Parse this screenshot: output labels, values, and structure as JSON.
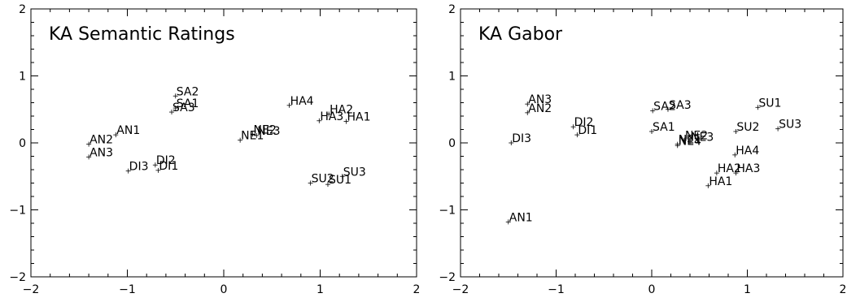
{
  "chart_data": [
    {
      "type": "scatter",
      "title": "KA Semantic Ratings",
      "xlim": [
        -2,
        2
      ],
      "ylim": [
        -2,
        2
      ],
      "xticks": [
        "−2",
        "−1",
        "0",
        "1",
        "2"
      ],
      "yticks": [
        "−2",
        "−1",
        "0",
        "1",
        "2"
      ],
      "grid": false,
      "points": [
        {
          "label": "SA2",
          "x": -0.5,
          "y": 0.7
        },
        {
          "label": "SA1",
          "x": -0.5,
          "y": 0.52
        },
        {
          "label": "SA3",
          "x": -0.54,
          "y": 0.46
        },
        {
          "label": "AN1",
          "x": -1.12,
          "y": 0.12
        },
        {
          "label": "AN2",
          "x": -1.4,
          "y": -0.02
        },
        {
          "label": "AN3",
          "x": -1.4,
          "y": -0.21
        },
        {
          "label": "DI2",
          "x": -0.71,
          "y": -0.33
        },
        {
          "label": "DI3",
          "x": -0.99,
          "y": -0.42
        },
        {
          "label": "DI1",
          "x": -0.68,
          "y": -0.41
        },
        {
          "label": "NE2",
          "x": 0.3,
          "y": 0.13
        },
        {
          "label": "NE3",
          "x": 0.34,
          "y": 0.11
        },
        {
          "label": "NE1",
          "x": 0.17,
          "y": 0.04
        },
        {
          "label": "HA4",
          "x": 0.68,
          "y": 0.56
        },
        {
          "label": "HA2",
          "x": 1.09,
          "y": 0.43
        },
        {
          "label": "HA3",
          "x": 0.99,
          "y": 0.33
        },
        {
          "label": "HA1",
          "x": 1.27,
          "y": 0.32
        },
        {
          "label": "SU2",
          "x": 0.9,
          "y": -0.6
        },
        {
          "label": "SU1",
          "x": 1.08,
          "y": -0.62
        },
        {
          "label": "SU3",
          "x": 1.23,
          "y": -0.5
        }
      ]
    },
    {
      "type": "scatter",
      "title": "KA Gabor",
      "xlim": [
        -2,
        2
      ],
      "ylim": [
        -2,
        2
      ],
      "xticks": [
        "−2",
        "−1",
        "0",
        "1",
        "2"
      ],
      "yticks": [
        "−2",
        "−1",
        "0",
        "1",
        "2"
      ],
      "grid": false,
      "points": [
        {
          "label": "AN3",
          "x": -1.3,
          "y": 0.58
        },
        {
          "label": "AN2",
          "x": -1.3,
          "y": 0.45
        },
        {
          "label": "DI3",
          "x": -1.47,
          "y": 0.0
        },
        {
          "label": "DI2",
          "x": -0.82,
          "y": 0.24
        },
        {
          "label": "DI1",
          "x": -0.78,
          "y": 0.12
        },
        {
          "label": "AN1",
          "x": -1.5,
          "y": -1.18
        },
        {
          "label": "SA2",
          "x": 0.01,
          "y": 0.48
        },
        {
          "label": "SA3",
          "x": 0.17,
          "y": 0.5
        },
        {
          "label": "SA1",
          "x": 0.0,
          "y": 0.17
        },
        {
          "label": "NE2",
          "x": 0.34,
          "y": 0.04
        },
        {
          "label": "NE3",
          "x": 0.4,
          "y": 0.02
        },
        {
          "label": "NE1",
          "x": 0.27,
          "y": -0.02
        },
        {
          "label": "NE4",
          "x": 0.27,
          "y": -0.04
        },
        {
          "label": "SU1",
          "x": 1.11,
          "y": 0.53
        },
        {
          "label": "SU2",
          "x": 0.88,
          "y": 0.17
        },
        {
          "label": "SU3",
          "x": 1.32,
          "y": 0.21
        },
        {
          "label": "HA4",
          "x": 0.87,
          "y": -0.18
        },
        {
          "label": "HA2",
          "x": 0.68,
          "y": -0.45
        },
        {
          "label": "HA3",
          "x": 0.88,
          "y": -0.45
        },
        {
          "label": "HA1",
          "x": 0.59,
          "y": -0.64
        }
      ]
    }
  ]
}
